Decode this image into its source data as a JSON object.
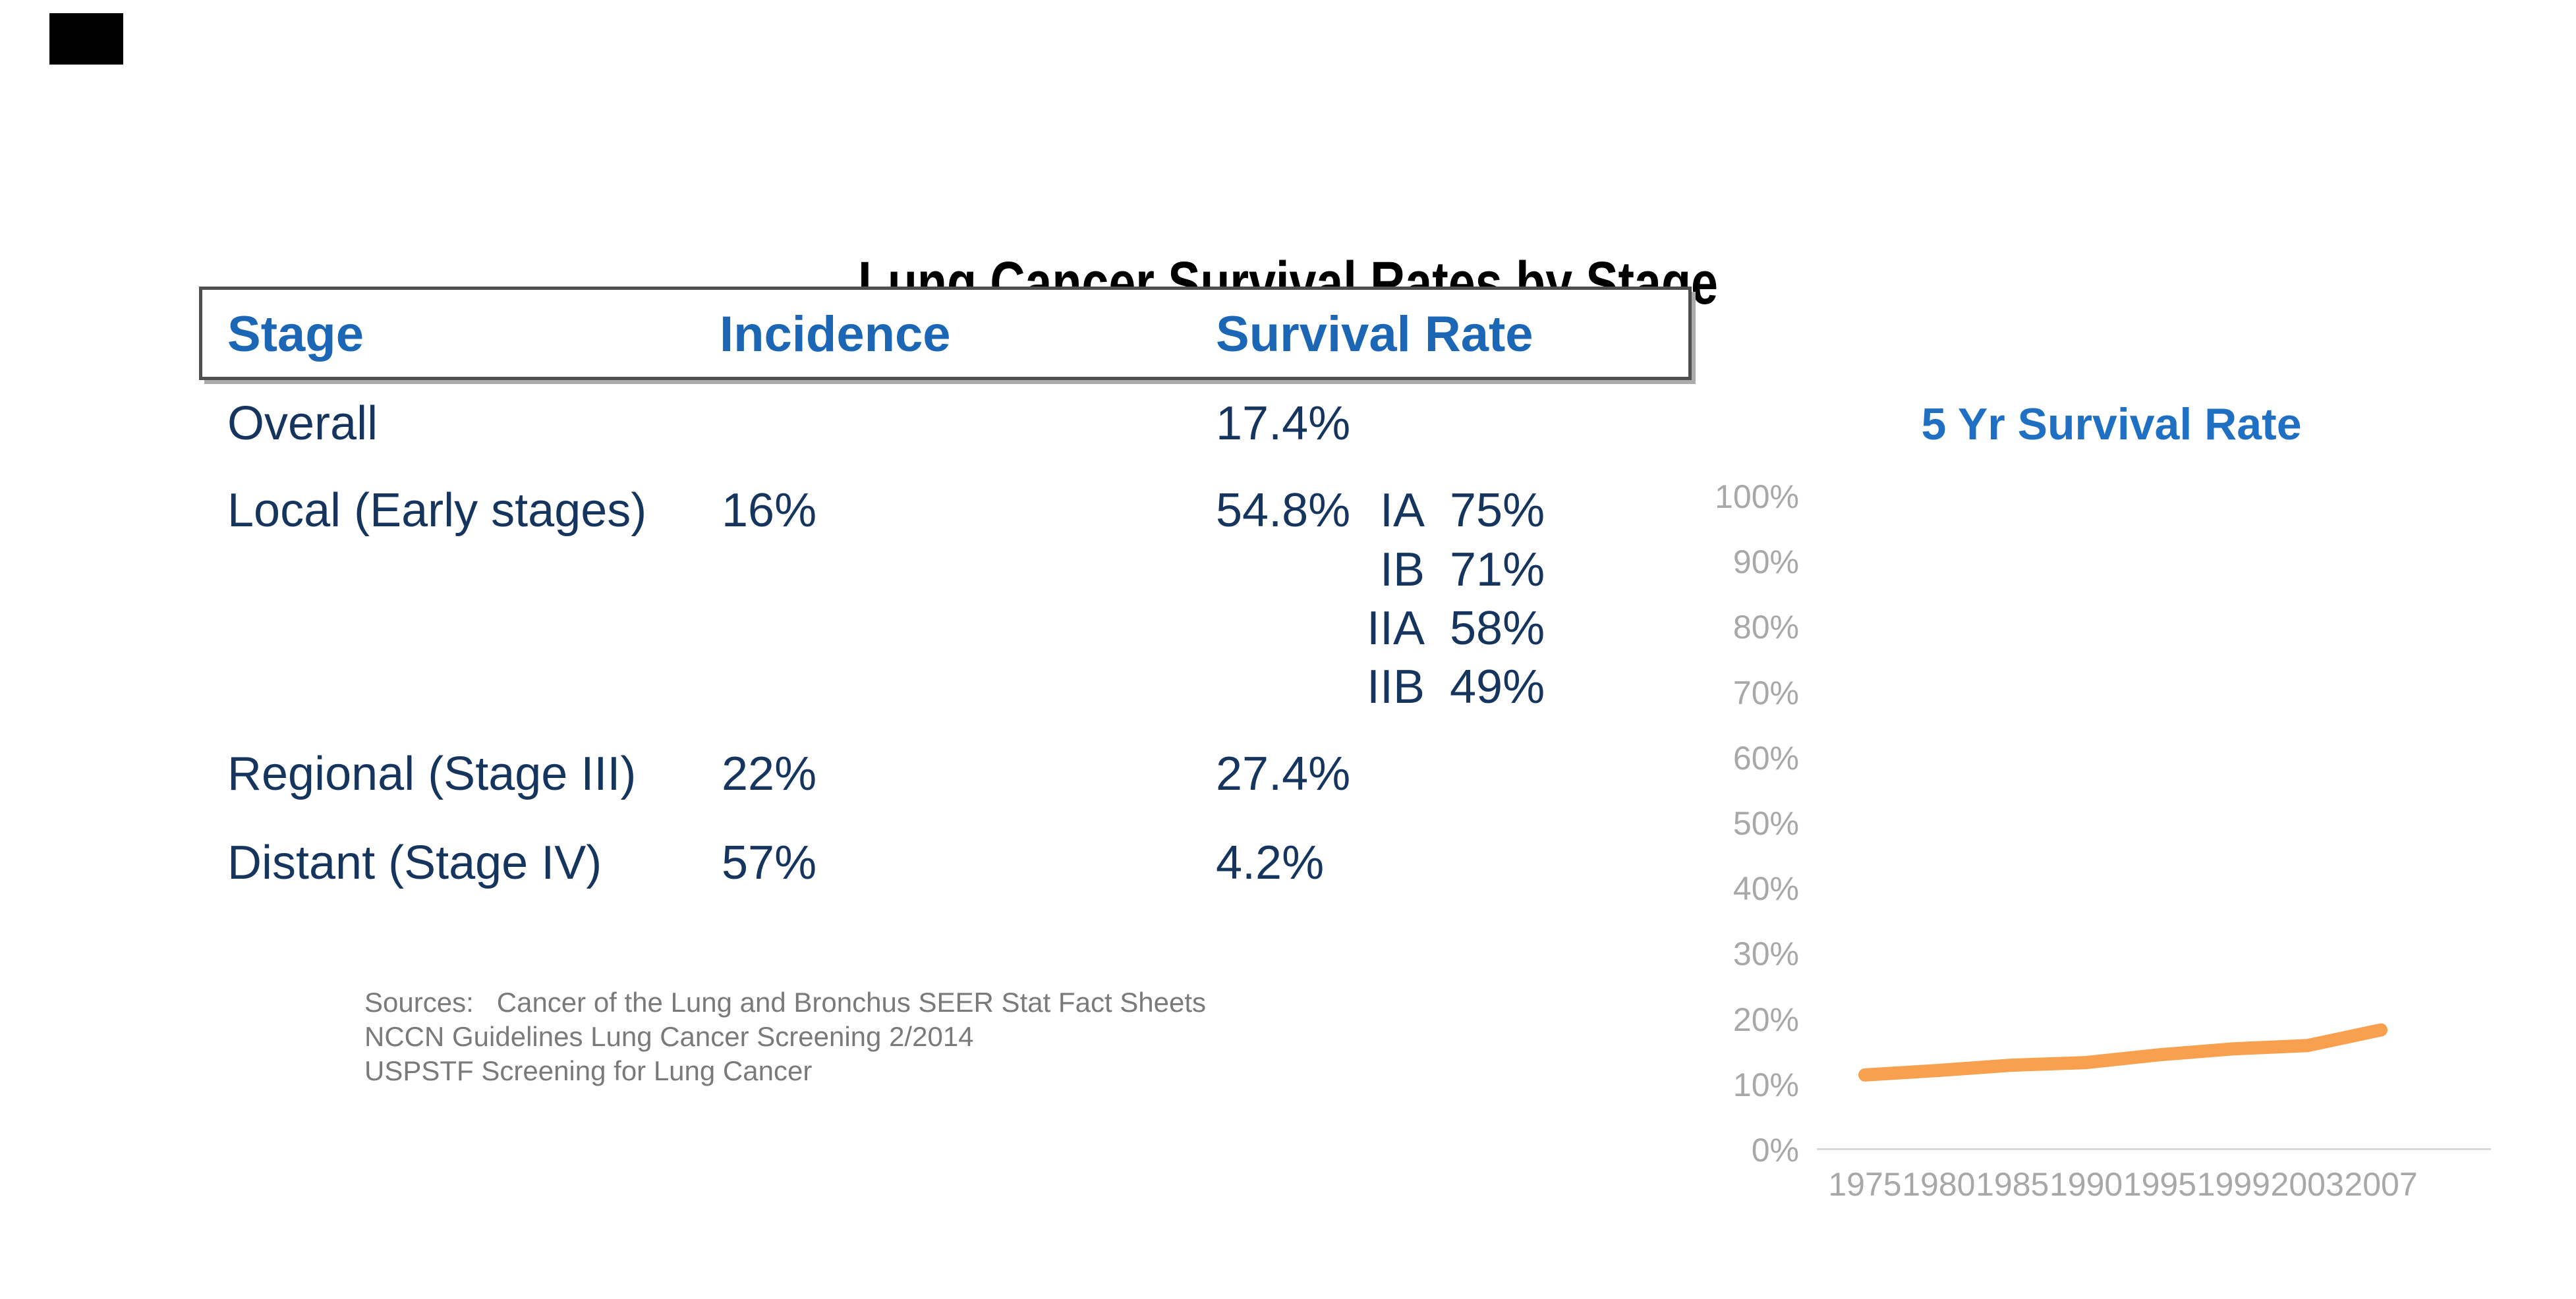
{
  "slide": {
    "title": "Lung Cancer Survival Rates by Stage"
  },
  "table": {
    "headers": [
      "Stage",
      "Incidence",
      "Survival Rate"
    ],
    "rows": [
      {
        "stage": "Overall",
        "incidence": "",
        "survival": "17.4%"
      },
      {
        "stage": "Local (Early stages)",
        "incidence": "16%",
        "survival": "54.8%"
      },
      {
        "stage": "Regional (Stage III)",
        "incidence": "22%",
        "survival": "27.4%"
      },
      {
        "stage": "Distant (Stage IV)",
        "incidence": "57%",
        "survival": "4.2%"
      }
    ],
    "substages": [
      {
        "label": "IA",
        "value": "75%"
      },
      {
        "label": "IB",
        "value": "71%"
      },
      {
        "label": "IIA",
        "value": "58%"
      },
      {
        "label": "IIB",
        "value": "49%"
      }
    ]
  },
  "sources": {
    "line1": "Sources:   Cancer of the Lung and Bronchus SEER Stat Fact Sheets",
    "line2": "NCCN Guidelines Lung Cancer Screening 2/2014",
    "line3": "USPSTF Screening for Lung Cancer"
  },
  "chart_data": {
    "type": "line",
    "title": "5 Yr Survival Rate",
    "x": [
      "1975",
      "1980",
      "1985",
      "1990",
      "1995",
      "1999",
      "2003",
      "2007"
    ],
    "values": [
      11.3,
      12.0,
      12.8,
      13.2,
      14.4,
      15.3,
      15.8,
      18.2
    ],
    "series_name": "5 Yr Survival Rate",
    "xlabel": "",
    "ylabel": "",
    "ylim": [
      0,
      100
    ],
    "y_tick_step": 10,
    "y_tick_labels": [
      "0%",
      "10%",
      "20%",
      "30%",
      "40%",
      "50%",
      "60%",
      "70%",
      "80%",
      "90%",
      "100%"
    ],
    "grid": false,
    "legend": false,
    "line_color": "#f8a04e"
  },
  "colors": {
    "title_black": "#000000",
    "header_blue": "#1b67b5",
    "body_navy": "#16355e",
    "chart_title_blue": "#1f6fc2",
    "axis_label_gray": "#a8a8a8",
    "axis_line_gray": "#d9d9d9",
    "sources_gray": "#7a7a7a",
    "line_orange": "#f8a04e",
    "box_border_gray": "#4f4f4f"
  }
}
